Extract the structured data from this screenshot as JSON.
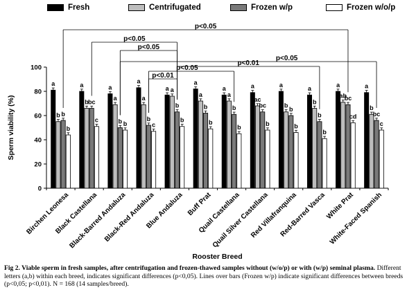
{
  "chart_data": {
    "type": "bar",
    "title": "",
    "xlabel": "Rooster Breed",
    "ylabel": "Sperm viability (%)",
    "ylim": [
      0,
      100
    ],
    "yticks": [
      0,
      20,
      40,
      60,
      80,
      100
    ],
    "categories": [
      "Birchen Leonesa",
      "Black Castellana",
      "Black-Barred Andaluza",
      "Black-Red Andaluza",
      "Blue Andaluza",
      "Buff Prat",
      "Quail Castellana",
      "Quail Silver Castellana",
      "Red Villafranquina",
      "Red-Barred Vasca",
      "White Prat",
      "White-Faced Spanish"
    ],
    "series": [
      {
        "name": "Fresh",
        "color": "#000000",
        "values": [
          81,
          80,
          78,
          83,
          77,
          82,
          77,
          79,
          80,
          77,
          80,
          79
        ],
        "labels": [
          "a",
          "a",
          "a",
          "a",
          "a",
          "a",
          "a",
          "a",
          "a",
          "a",
          "a",
          "a"
        ]
      },
      {
        "name": "Centrifugated",
        "color": "#bdbdbd",
        "values": [
          55,
          66,
          69,
          69,
          76,
          72,
          72,
          68,
          63,
          66,
          71,
          61
        ],
        "labels": [
          "b",
          "b",
          "a",
          "a",
          "a",
          "a",
          "a",
          "ac",
          "b",
          "b",
          "ab",
          "b"
        ]
      },
      {
        "name": "Frozen w/p",
        "color": "#7a7a7a",
        "values": [
          56,
          66,
          50,
          52,
          63,
          62,
          61,
          63,
          60,
          55,
          69,
          56
        ],
        "labels": [
          "b",
          "bc",
          "b",
          "b",
          "b",
          "b",
          "b",
          "bc",
          "b",
          "b",
          "bc",
          "bc"
        ]
      },
      {
        "name": "Frozen w/o/p",
        "color": "#ffffff",
        "values": [
          44,
          51,
          48,
          47,
          51,
          49,
          45,
          48,
          46,
          41,
          54,
          48
        ],
        "labels": [
          "b",
          "c",
          "b",
          "c",
          "b",
          "b",
          "b",
          "b",
          "b",
          "b",
          "cd",
          "c"
        ]
      }
    ],
    "legend_position": "top",
    "significance_brackets": [
      {
        "label": "p<0.05",
        "from": "Birchen Leonesa",
        "to": "White Prat"
      },
      {
        "label": "p<0.05",
        "from": "Black Castellana",
        "to": "Blue Andaluza"
      },
      {
        "label": "p<0.05",
        "from": "Black-Barred Andaluza",
        "to": "Blue Andaluza"
      },
      {
        "label": "p<0.05",
        "from": "Black-Red Andaluza",
        "to": "Quail Castellana"
      },
      {
        "label": "p<0.01",
        "from": "Blue Andaluza",
        "to": "Red-Barred Vasca"
      },
      {
        "label": "p<0.05",
        "from": "Black-Barred Andaluza",
        "to": "White-Faced Spanish"
      },
      {
        "label": "p<0.01",
        "from": "Black-Red Andaluza",
        "to": "Blue Andaluza"
      }
    ]
  },
  "caption": {
    "bold": "Fig 2. Viable sperm in fresh samples, after centrifugation and frozen-thawed samples without (w/o/p) or with (w/p) seminal plasma.",
    "text": " Different letters (a,b) within each breed, indicates significant differences (p<0,05). Lines over bars (Frozen w/p) indicate significant differences between breeds (p<0,05; p<0,01). N = 168 (14 samples/breed)."
  }
}
